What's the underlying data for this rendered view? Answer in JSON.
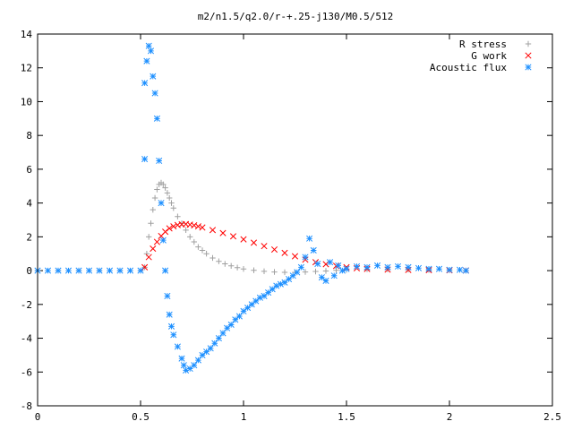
{
  "chart_data": {
    "type": "scatter",
    "title": "m2/n1.5/q2.0/r-+.25-j130/M0.5/512",
    "xlabel": "",
    "ylabel": "",
    "xlim": [
      0,
      2.5
    ],
    "ylim": [
      -8,
      14
    ],
    "grid": false,
    "legend_position": "top-right",
    "xticks": [
      0,
      0.5,
      1,
      1.5,
      2,
      2.5
    ],
    "xtick_labels": [
      "0",
      "0.5",
      "1",
      "1.5",
      "2",
      "2.5"
    ],
    "yticks": [
      -8,
      -6,
      -4,
      -2,
      0,
      2,
      4,
      6,
      8,
      10,
      12,
      14
    ],
    "ytick_labels": [
      "-8",
      "-6",
      "-4",
      "-2",
      "0",
      "2",
      "4",
      "6",
      "8",
      "10",
      "12",
      "14"
    ],
    "series": [
      {
        "name": "R stress",
        "marker": "plus",
        "color": "#a0a0a0",
        "x": [
          0.0,
          0.1,
          0.2,
          0.3,
          0.4,
          0.5,
          0.52,
          0.53,
          0.54,
          0.55,
          0.56,
          0.57,
          0.58,
          0.59,
          0.6,
          0.61,
          0.62,
          0.63,
          0.64,
          0.65,
          0.66,
          0.68,
          0.7,
          0.72,
          0.74,
          0.76,
          0.78,
          0.8,
          0.82,
          0.85,
          0.88,
          0.91,
          0.94,
          0.97,
          1.0,
          1.05,
          1.1,
          1.15,
          1.2,
          1.25,
          1.3,
          1.35,
          1.4,
          1.45,
          1.5,
          1.6,
          1.7,
          1.8,
          1.9,
          2.0,
          2.08
        ],
        "y": [
          0,
          0,
          0,
          0,
          0,
          0,
          0.2,
          1.0,
          2.0,
          2.8,
          3.6,
          4.3,
          4.8,
          5.1,
          5.2,
          5.1,
          4.9,
          4.6,
          4.3,
          4.0,
          3.7,
          3.2,
          2.8,
          2.4,
          2.0,
          1.7,
          1.4,
          1.2,
          1.0,
          0.75,
          0.55,
          0.4,
          0.28,
          0.18,
          0.1,
          0.02,
          -0.04,
          -0.08,
          -0.1,
          -0.1,
          -0.08,
          -0.05,
          -0.02,
          0.02,
          0.05,
          0.08,
          0.08,
          0.06,
          0.04,
          0.02,
          0.0
        ]
      },
      {
        "name": "G work",
        "marker": "cross",
        "color": "#ff0000",
        "x": [
          0.52,
          0.54,
          0.56,
          0.58,
          0.6,
          0.62,
          0.64,
          0.66,
          0.68,
          0.7,
          0.72,
          0.74,
          0.76,
          0.78,
          0.8,
          0.85,
          0.9,
          0.95,
          1.0,
          1.05,
          1.1,
          1.15,
          1.2,
          1.25,
          1.3,
          1.35,
          1.4,
          1.45,
          1.5,
          1.55,
          1.6,
          1.7,
          1.8,
          1.9,
          2.0,
          2.08
        ],
        "y": [
          0.2,
          0.8,
          1.3,
          1.7,
          2.05,
          2.3,
          2.5,
          2.62,
          2.7,
          2.74,
          2.75,
          2.72,
          2.68,
          2.62,
          2.55,
          2.4,
          2.22,
          2.03,
          1.85,
          1.65,
          1.45,
          1.25,
          1.05,
          0.85,
          0.65,
          0.5,
          0.38,
          0.28,
          0.2,
          0.14,
          0.1,
          0.06,
          0.04,
          0.03,
          0.02,
          0.01
        ]
      },
      {
        "name": "Acoustic flux",
        "marker": "star",
        "color": "#1e90ff",
        "x": [
          0.0,
          0.05,
          0.1,
          0.15,
          0.2,
          0.25,
          0.3,
          0.35,
          0.4,
          0.45,
          0.5,
          0.52,
          0.52,
          0.53,
          0.54,
          0.55,
          0.56,
          0.57,
          0.58,
          0.59,
          0.6,
          0.61,
          0.62,
          0.63,
          0.64,
          0.65,
          0.66,
          0.68,
          0.7,
          0.71,
          0.72,
          0.74,
          0.76,
          0.78,
          0.8,
          0.82,
          0.84,
          0.86,
          0.88,
          0.9,
          0.92,
          0.94,
          0.96,
          0.98,
          1.0,
          1.02,
          1.04,
          1.06,
          1.08,
          1.1,
          1.12,
          1.14,
          1.16,
          1.18,
          1.2,
          1.22,
          1.24,
          1.26,
          1.28,
          1.3,
          1.32,
          1.34,
          1.36,
          1.38,
          1.4,
          1.42,
          1.44,
          1.46,
          1.48,
          1.5,
          1.55,
          1.6,
          1.65,
          1.7,
          1.75,
          1.8,
          1.85,
          1.9,
          1.95,
          2.0,
          2.05,
          2.08
        ],
        "y": [
          0,
          0,
          0,
          0,
          0,
          0,
          0,
          0,
          0,
          0,
          0,
          6.6,
          11.1,
          12.4,
          13.3,
          13.0,
          11.5,
          10.5,
          9.0,
          6.5,
          4.0,
          1.8,
          0.0,
          -1.5,
          -2.6,
          -3.3,
          -3.8,
          -4.5,
          -5.2,
          -5.6,
          -5.9,
          -5.8,
          -5.6,
          -5.3,
          -5.0,
          -4.8,
          -4.6,
          -4.3,
          -4.0,
          -3.7,
          -3.4,
          -3.2,
          -2.9,
          -2.7,
          -2.4,
          -2.2,
          -2.0,
          -1.8,
          -1.6,
          -1.5,
          -1.3,
          -1.1,
          -0.9,
          -0.8,
          -0.7,
          -0.5,
          -0.3,
          -0.1,
          0.2,
          0.8,
          1.9,
          1.2,
          0.4,
          -0.4,
          -0.6,
          0.5,
          -0.3,
          0.3,
          0.0,
          0.1,
          0.25,
          0.2,
          0.3,
          0.2,
          0.25,
          0.2,
          0.15,
          0.1,
          0.1,
          0.05,
          0.05,
          0.0
        ]
      }
    ]
  }
}
